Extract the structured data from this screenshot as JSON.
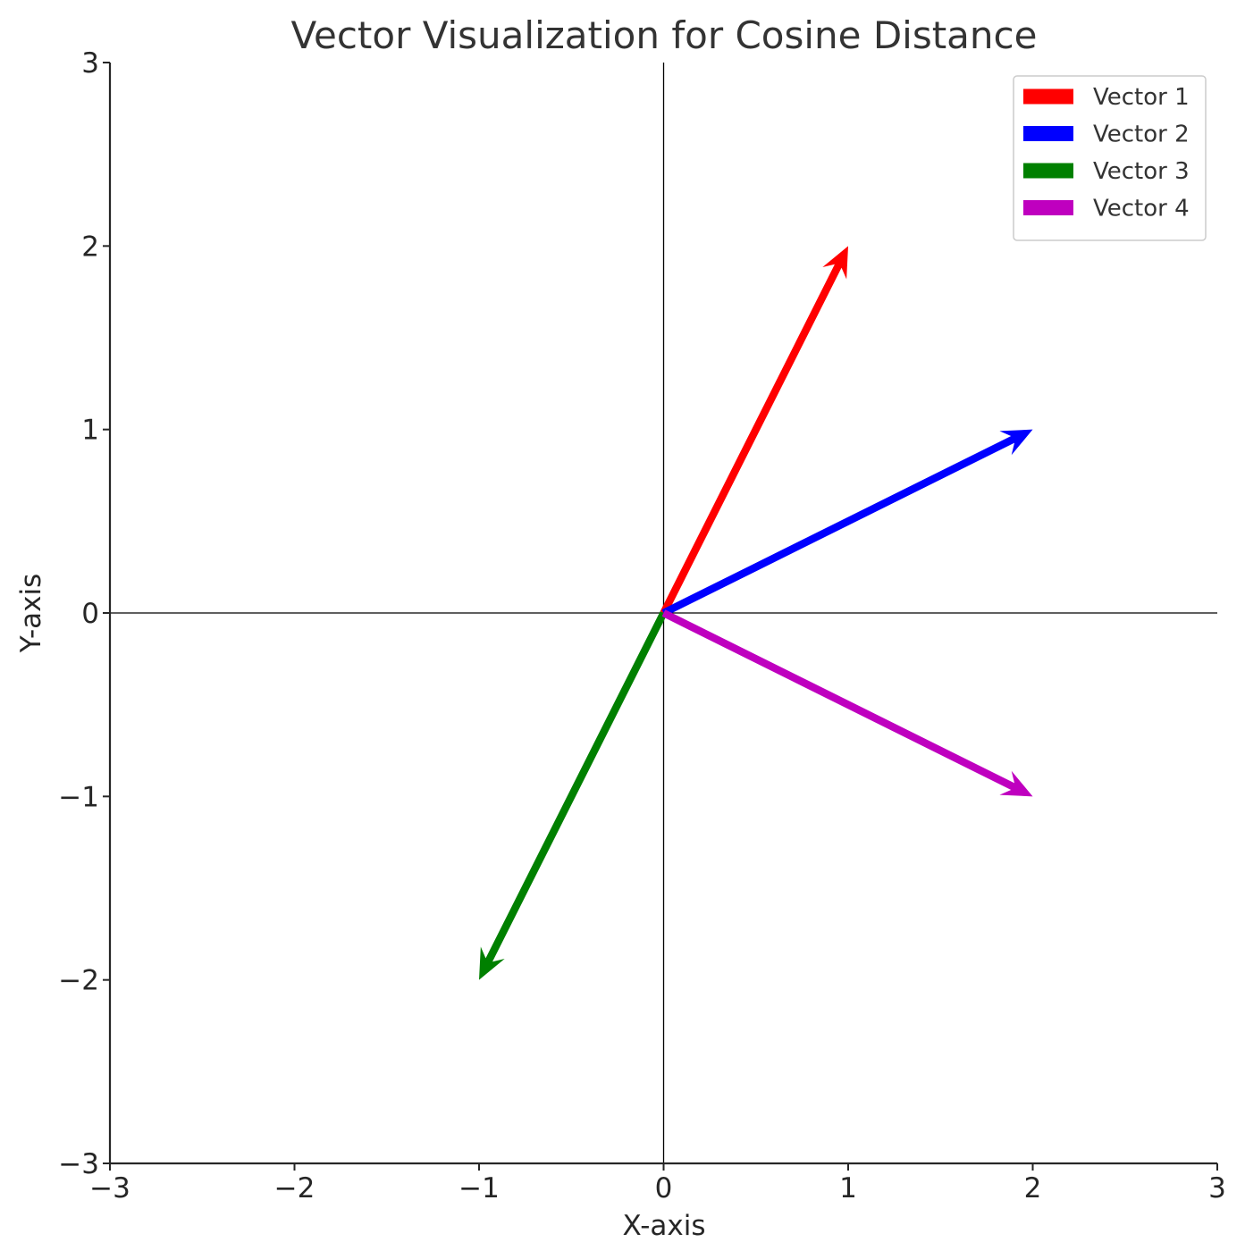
{
  "chart_data": {
    "type": "quiver",
    "title": "Vector Visualization for Cosine Distance",
    "xlabel": "X-axis",
    "ylabel": "Y-axis",
    "xlim": [
      -3,
      3
    ],
    "ylim": [
      -3,
      3
    ],
    "xticks": [
      -3,
      -2,
      -1,
      0,
      1,
      2,
      3
    ],
    "yticks": [
      -3,
      -2,
      -1,
      0,
      1,
      2,
      3
    ],
    "xtick_labels": [
      "−3",
      "−2",
      "−1",
      "0",
      "1",
      "2",
      "3"
    ],
    "ytick_labels": [
      "−3",
      "−2",
      "−1",
      "0",
      "1",
      "2",
      "3"
    ],
    "grid": false,
    "reference_lines": {
      "x": 0,
      "y": 0
    },
    "legend_position": "top-right",
    "series": [
      {
        "name": "Vector 1",
        "origin": [
          0,
          0
        ],
        "x": 1,
        "y": 2,
        "color": "#ff0000"
      },
      {
        "name": "Vector 2",
        "origin": [
          0,
          0
        ],
        "x": 2,
        "y": 1,
        "color": "#0000ff"
      },
      {
        "name": "Vector 3",
        "origin": [
          0,
          0
        ],
        "x": -1,
        "y": -2,
        "color": "#008000"
      },
      {
        "name": "Vector 4",
        "origin": [
          0,
          0
        ],
        "x": 2,
        "y": -1,
        "color": "#bf00bf"
      }
    ]
  }
}
